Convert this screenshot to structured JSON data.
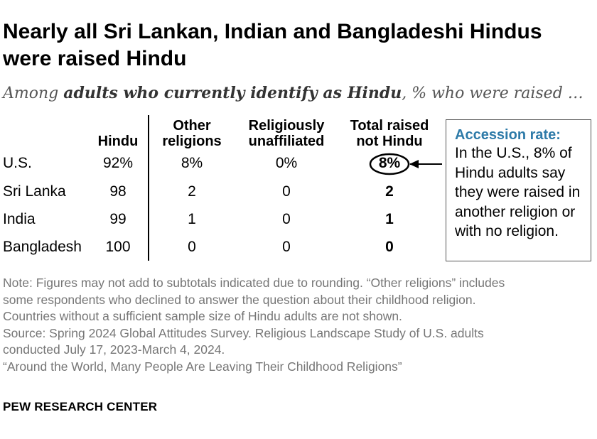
{
  "title": "Nearly all Sri Lankan, Indian and Bangladeshi Hindus were raised Hindu",
  "subtitle": {
    "prefix": "Among ",
    "emphasis": "adults who currently identify as Hindu",
    "suffix": ", % who were raised …"
  },
  "chart_data": {
    "type": "table",
    "columns": [
      {
        "line1": "",
        "line2": "Hindu"
      },
      {
        "line1": "Other",
        "line2": "religions"
      },
      {
        "line1": "Religiously",
        "line2": "unaffiliated"
      },
      {
        "line1": "Total raised",
        "line2": "not Hindu"
      }
    ],
    "rows": [
      {
        "label": "U.S.",
        "values": [
          "92%",
          "8%",
          "0%",
          "8%"
        ]
      },
      {
        "label": "Sri Lanka",
        "values": [
          "98",
          "2",
          "0",
          "2"
        ]
      },
      {
        "label": "India",
        "values": [
          "99",
          "1",
          "0",
          "1"
        ]
      },
      {
        "label": "Bangladesh",
        "values": [
          "100",
          "0",
          "0",
          "0"
        ]
      }
    ],
    "highlight": {
      "row": 0,
      "column": 3
    }
  },
  "callout": {
    "title": "Accession rate:",
    "body": "In the U.S., 8% of Hindu adults say they were raised in another religion or with no religion."
  },
  "notes": [
    "Note: Figures may not add to subtotals indicated due to rounding. “Other religions” includes",
    "some respondents who declined to answer the question about their childhood religion.",
    "Countries without a sufficient sample size of Hindu adults are not shown.",
    "Source: Spring 2024 Global Attitudes Survey. Religious Landscape Study of U.S. adults",
    "conducted July 17, 2023-March 4, 2024.",
    "“Around the World, Many People Are Leaving Their Childhood Religions”"
  ],
  "brand": "PEW RESEARCH CENTER",
  "colors": {
    "accent": "#2d7aa8",
    "note": "#767676",
    "subtitle": "#555555"
  }
}
